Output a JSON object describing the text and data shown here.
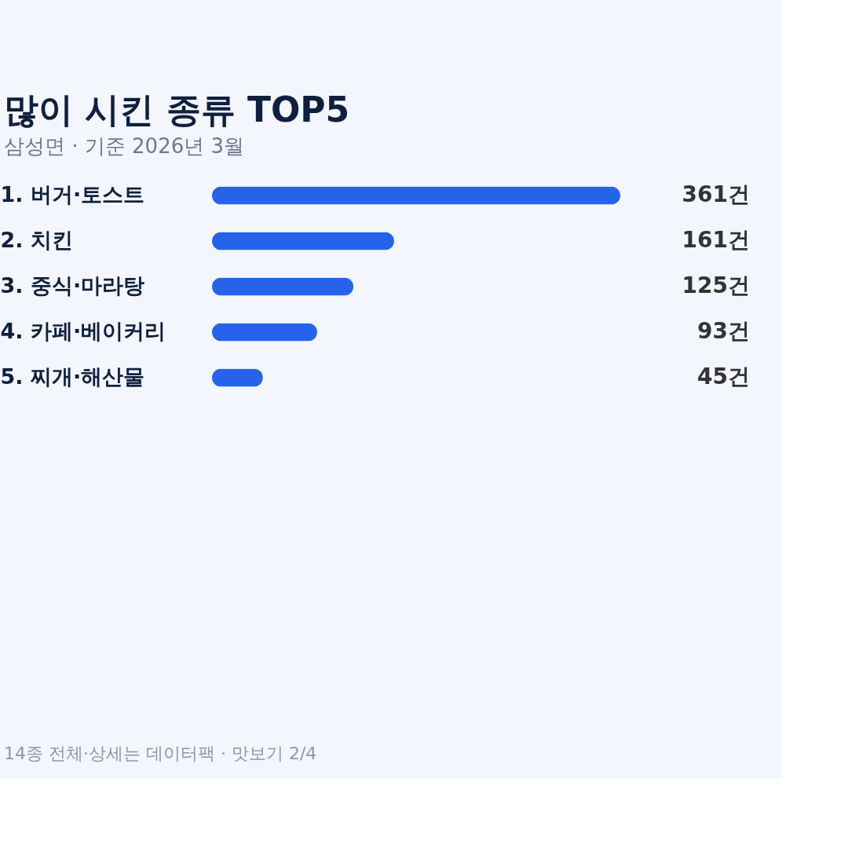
{
  "chart_data": {
    "type": "bar",
    "orientation": "horizontal",
    "title": "많이 시킨 종류 TOP5",
    "subtitle": "삼성면 · 기준 2026년 3월",
    "categories": [
      "1.  버거·토스트",
      "2.  치킨",
      "3.  중식·마라탕",
      "4.  카페·베이커리",
      "5.  찌개·해산물"
    ],
    "values": [
      361,
      161,
      125,
      93,
      45
    ],
    "value_labels": [
      "361건",
      "161건",
      "125건",
      "93건",
      "45건"
    ],
    "color": "#2563eb",
    "xlim": [
      0,
      361
    ],
    "tick_labels": "y",
    "grid": false,
    "annotations": [
      "14종 전체·상세는 데이터팩 · 맛보기 2/4"
    ]
  }
}
